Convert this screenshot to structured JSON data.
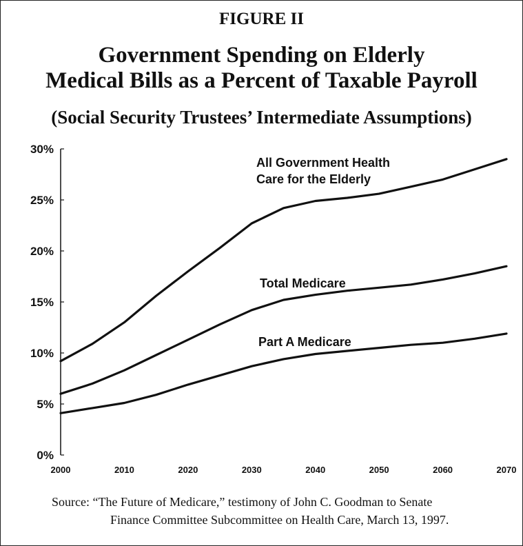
{
  "figure_label": "FIGURE II",
  "title_line1": "Government Spending on Elderly",
  "title_line2": "Medical Bills as a Percent of Taxable Payroll",
  "subtitle": "(Social Security Trustees’ Intermediate Assumptions)",
  "source_line1": "Source:  “The Future of Medicare,” testimony of John C. Goodman to Senate",
  "source_line2": "Finance Committee Subcommittee on Health Care, March 13, 1997.",
  "chart_data": {
    "type": "line",
    "xlim": [
      2000,
      2070
    ],
    "ylim": [
      0,
      30
    ],
    "x_ticks": [
      2000,
      2010,
      2020,
      2030,
      2040,
      2050,
      2060,
      2070
    ],
    "y_ticks": [
      0,
      5,
      10,
      15,
      20,
      25,
      30
    ],
    "y_tick_labels": [
      "0%",
      "5%",
      "10%",
      "15%",
      "20%",
      "25%",
      "30%"
    ],
    "x_tick_labels": [
      "2000",
      "2010",
      "2020",
      "2030",
      "2040",
      "2050",
      "2060",
      "2070"
    ],
    "grid": false,
    "legend": "none",
    "series": [
      {
        "name": "All Government Health Care for the Elderly",
        "label_lines": [
          "All Government Health",
          "Care for the Elderly"
        ],
        "x": [
          2000,
          2005,
          2010,
          2015,
          2020,
          2025,
          2030,
          2035,
          2040,
          2045,
          2050,
          2055,
          2060,
          2065,
          2070
        ],
        "y": [
          9.2,
          10.9,
          13.0,
          15.6,
          18.0,
          20.3,
          22.7,
          24.2,
          24.9,
          25.2,
          25.6,
          26.3,
          27.0,
          28.0,
          29.0
        ]
      },
      {
        "name": "Total Medicare",
        "label_lines": [
          "Total Medicare"
        ],
        "x": [
          2000,
          2005,
          2010,
          2015,
          2020,
          2025,
          2030,
          2035,
          2040,
          2045,
          2050,
          2055,
          2060,
          2065,
          2070
        ],
        "y": [
          6.0,
          7.0,
          8.3,
          9.8,
          11.3,
          12.8,
          14.2,
          15.2,
          15.7,
          16.1,
          16.4,
          16.7,
          17.2,
          17.8,
          18.5
        ]
      },
      {
        "name": "Part A Medicare",
        "label_lines": [
          "Part A Medicare"
        ],
        "x": [
          2000,
          2005,
          2010,
          2015,
          2020,
          2025,
          2030,
          2035,
          2040,
          2045,
          2050,
          2055,
          2060,
          2065,
          2070
        ],
        "y": [
          4.1,
          4.6,
          5.1,
          5.9,
          6.9,
          7.8,
          8.7,
          9.4,
          9.9,
          10.2,
          10.5,
          10.8,
          11.0,
          11.4,
          11.9
        ]
      }
    ],
    "colors": {
      "line": "#111111",
      "axis": "#111111"
    }
  }
}
